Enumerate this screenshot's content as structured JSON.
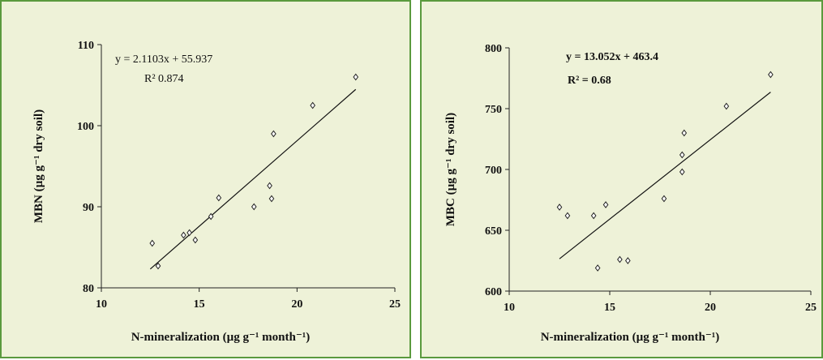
{
  "chart_data": [
    {
      "type": "scatter",
      "xlabel": "N-mineralization (µg g⁻¹ month⁻¹)",
      "ylabel": "MBN (µg g⁻¹ dry soil)",
      "xlim": [
        10,
        25
      ],
      "ylim": [
        80,
        110
      ],
      "xticks": [
        "10",
        "15",
        "20",
        "25"
      ],
      "yticks": [
        "80",
        "90",
        "100",
        "110"
      ],
      "points": [
        {
          "x": 12.6,
          "y": 85.5
        },
        {
          "x": 12.9,
          "y": 82.7
        },
        {
          "x": 14.2,
          "y": 86.5
        },
        {
          "x": 14.5,
          "y": 86.8
        },
        {
          "x": 14.8,
          "y": 85.9
        },
        {
          "x": 15.6,
          "y": 88.8
        },
        {
          "x": 16.0,
          "y": 91.1
        },
        {
          "x": 17.8,
          "y": 90.0
        },
        {
          "x": 18.6,
          "y": 92.6
        },
        {
          "x": 18.7,
          "y": 91.0
        },
        {
          "x": 18.8,
          "y": 99.0
        },
        {
          "x": 20.8,
          "y": 102.5
        },
        {
          "x": 23.0,
          "y": 106.0
        }
      ],
      "trendline": {
        "slope": 2.1103,
        "intercept": 55.937,
        "x_range": [
          12.5,
          23.0
        ]
      },
      "equation": "y = 2.1103x + 55.937",
      "r2": "R² 0.874",
      "grid": false
    },
    {
      "type": "scatter",
      "xlabel": "N-mineralization (µg g⁻¹ month⁻¹)",
      "ylabel": "MBC (µg g⁻¹ dry soil)",
      "xlim": [
        10,
        25
      ],
      "ylim": [
        600,
        800
      ],
      "xticks": [
        "10",
        "15",
        "20",
        "25"
      ],
      "yticks": [
        "600",
        "650",
        "700",
        "750",
        "800"
      ],
      "points": [
        {
          "x": 12.5,
          "y": 669
        },
        {
          "x": 12.9,
          "y": 662
        },
        {
          "x": 14.2,
          "y": 662
        },
        {
          "x": 14.4,
          "y": 619
        },
        {
          "x": 14.8,
          "y": 671
        },
        {
          "x": 15.5,
          "y": 626
        },
        {
          "x": 15.9,
          "y": 625
        },
        {
          "x": 17.7,
          "y": 676
        },
        {
          "x": 18.6,
          "y": 698
        },
        {
          "x": 18.6,
          "y": 712
        },
        {
          "x": 18.7,
          "y": 730
        },
        {
          "x": 20.8,
          "y": 752
        },
        {
          "x": 23.0,
          "y": 778
        }
      ],
      "trendline": {
        "slope": 13.052,
        "intercept": 463.4,
        "x_range": [
          12.5,
          23.0
        ]
      },
      "equation": "y = 13.052x + 463.4",
      "r2": "R² = 0.68",
      "grid": false
    }
  ]
}
